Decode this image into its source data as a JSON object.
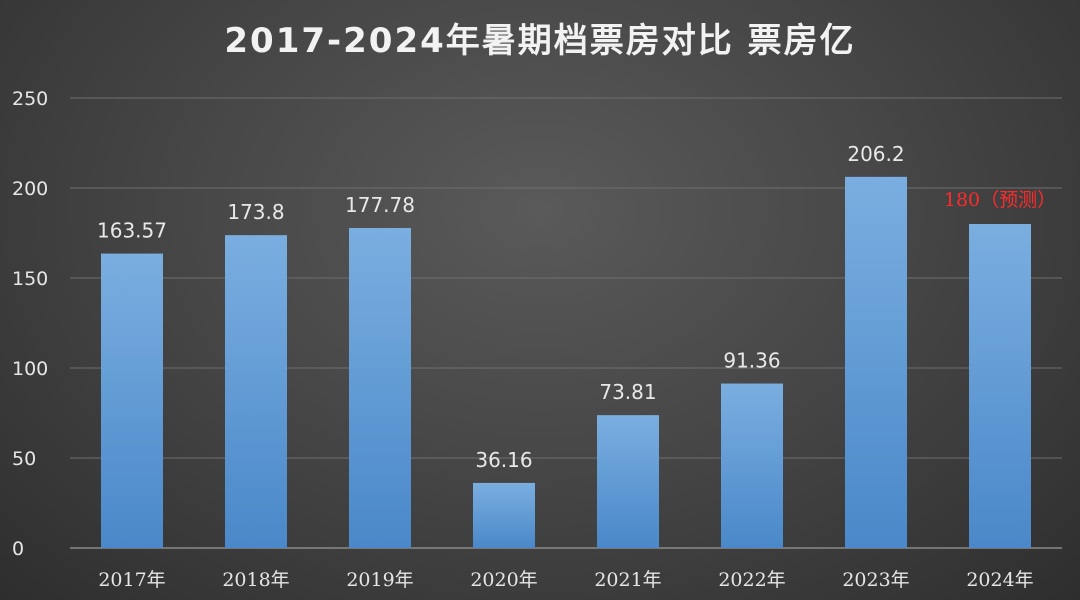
{
  "chart_data": {
    "type": "bar",
    "title": "2017-2024年暑期档票房对比 票房亿",
    "xlabel": "",
    "ylabel": "",
    "ylim": [
      0,
      250
    ],
    "yticks": [
      0,
      50,
      100,
      150,
      200,
      250
    ],
    "grid": true,
    "legend": "none",
    "categories": [
      "2017年",
      "2018年",
      "2019年",
      "2020年",
      "2021年",
      "2022年",
      "2023年",
      "2024年"
    ],
    "values": [
      163.57,
      173.8,
      177.78,
      36.16,
      73.81,
      91.36,
      206.2,
      180
    ],
    "value_labels": [
      "163.57",
      "173.8",
      "177.78",
      "36.16",
      "73.81",
      "91.36",
      "206.2",
      "180（预测）"
    ],
    "highlight_label_index": 7,
    "colors": {
      "bar_top": "#7aaee0",
      "bar_bottom": "#4a88c9",
      "highlight_label": "#ff2b2b",
      "text": "#e6e6e6"
    }
  }
}
